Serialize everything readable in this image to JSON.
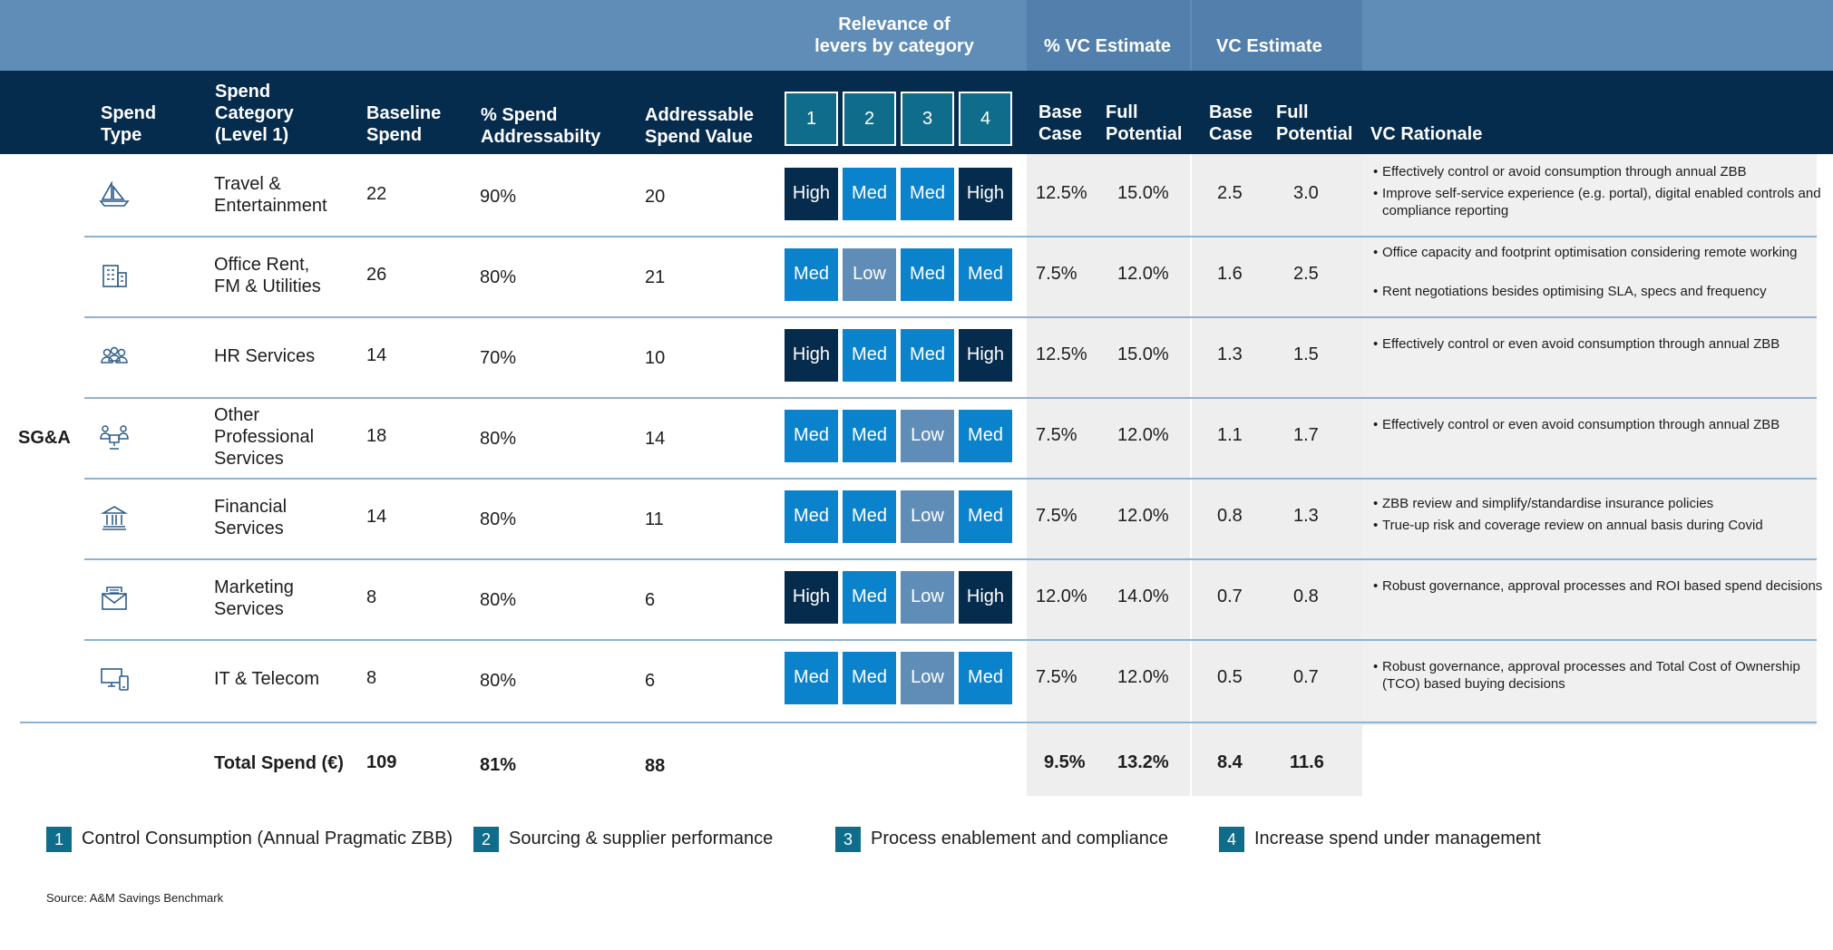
{
  "header": {
    "relevance_l1": "Relevance of",
    "relevance_l2": "levers by category",
    "vc_pct": "% VC Estimate",
    "vc_est": "VC Estimate",
    "spend_type_l1": "Spend",
    "spend_type_l2": "Type",
    "category_l1": "Spend",
    "category_l2": "Category",
    "category_l3": "(Level 1)",
    "baseline_l1": "Baseline",
    "baseline_l2": "Spend",
    "addr_pct_l1": "% Spend",
    "addr_pct_l2": "Addressabilty",
    "addr_val_l1": "Addressable",
    "addr_val_l2": "Spend Value",
    "levers": [
      "1",
      "2",
      "3",
      "4"
    ],
    "base_case_l1": "Base",
    "base_case_l2": "Case",
    "full_pot_l1": "Full",
    "full_pot_l2": "Potential",
    "vc_base_l1": "Base",
    "vc_base_l2": "Case",
    "vc_full_l1": "Full",
    "vc_full_l2": "Potential",
    "rationale": "VC Rationale"
  },
  "spend_type": "SG&A",
  "rows": [
    {
      "icon": "sailboat-icon",
      "category": [
        "Travel &",
        "Entertainment"
      ],
      "baseline": "22",
      "addr_pct": "90%",
      "addr_val": "20",
      "levers": [
        "High",
        "Med",
        "Med",
        "High"
      ],
      "pct_base": "12.5%",
      "pct_full": "15.0%",
      "vc_base": "2.5",
      "vc_full": "3.0",
      "rationale": [
        "Effectively control or avoid consumption through annual ZBB",
        "Improve self-service experience (e.g. portal), digital enabled controls and compliance reporting"
      ]
    },
    {
      "icon": "building-icon",
      "category": [
        "Office Rent,",
        "FM & Utilities"
      ],
      "baseline": "26",
      "addr_pct": "80%",
      "addr_val": "21",
      "levers": [
        "Med",
        "Low",
        "Med",
        "Med"
      ],
      "pct_base": "7.5%",
      "pct_full": "12.0%",
      "vc_base": "1.6",
      "vc_full": "2.5",
      "rationale": [
        "Office capacity and footprint optimisation considering remote working",
        "Rent negotiations besides optimising SLA, specs and frequency"
      ]
    },
    {
      "icon": "people-icon",
      "category": [
        "HR Services"
      ],
      "baseline": "14",
      "addr_pct": "70%",
      "addr_val": "10",
      "levers": [
        "High",
        "Med",
        "Med",
        "High"
      ],
      "pct_base": "12.5%",
      "pct_full": "15.0%",
      "vc_base": "1.3",
      "vc_full": "1.5",
      "rationale": [
        "Effectively control or even avoid consumption through annual ZBB"
      ]
    },
    {
      "icon": "professionals-icon",
      "category": [
        "Other",
        "Professional",
        "Services"
      ],
      "baseline": "18",
      "addr_pct": "80%",
      "addr_val": "14",
      "levers": [
        "Med",
        "Med",
        "Low",
        "Med"
      ],
      "pct_base": "7.5%",
      "pct_full": "12.0%",
      "vc_base": "1.1",
      "vc_full": "1.7",
      "rationale": [
        "Effectively control or even avoid consumption through annual ZBB"
      ]
    },
    {
      "icon": "bank-icon",
      "category": [
        "Financial",
        "Services"
      ],
      "baseline": "14",
      "addr_pct": "80%",
      "addr_val": "11",
      "levers": [
        "Med",
        "Med",
        "Low",
        "Med"
      ],
      "pct_base": "7.5%",
      "pct_full": "12.0%",
      "vc_base": "0.8",
      "vc_full": "1.3",
      "rationale": [
        "ZBB review and simplify/standardise insurance policies",
        "True-up risk and coverage review on annual basis during Covid"
      ]
    },
    {
      "icon": "envelope-icon",
      "category": [
        "Marketing",
        "Services"
      ],
      "baseline": "8",
      "addr_pct": "80%",
      "addr_val": "6",
      "levers": [
        "High",
        "Med",
        "Low",
        "High"
      ],
      "pct_base": "12.0%",
      "pct_full": "14.0%",
      "vc_base": "0.7",
      "vc_full": "0.8",
      "rationale": [
        "Robust governance, approval processes and ROI based spend decisions"
      ]
    },
    {
      "icon": "computer-icon",
      "category": [
        "IT & Telecom"
      ],
      "baseline": "8",
      "addr_pct": "80%",
      "addr_val": "6",
      "levers": [
        "Med",
        "Med",
        "Low",
        "Med"
      ],
      "pct_base": "7.5%",
      "pct_full": "12.0%",
      "vc_base": "0.5",
      "vc_full": "0.7",
      "rationale": [
        "Robust governance, approval processes and Total Cost of Ownership (TCO) based buying decisions"
      ]
    }
  ],
  "total": {
    "label": "Total Spend (€)",
    "baseline": "109",
    "addr_pct": "81%",
    "addr_val": "88",
    "pct_base": "9.5%",
    "pct_full": "13.2%",
    "vc_base": "8.4",
    "vc_full": "11.6"
  },
  "legend": [
    {
      "num": "1",
      "label": "Control Consumption (Annual Pragmatic ZBB)"
    },
    {
      "num": "2",
      "label": "Sourcing & supplier performance"
    },
    {
      "num": "3",
      "label": "Process enablement and compliance"
    },
    {
      "num": "4",
      "label": "Increase spend under management"
    }
  ],
  "source": "Source: A&M Savings Benchmark",
  "colors": {
    "high": "#052b4d",
    "med": "#0a82cc",
    "low": "#5f8db8",
    "header_dark": "#052b4d",
    "header_light": "#5f8db8",
    "lever_head": "#0f6c8a"
  }
}
